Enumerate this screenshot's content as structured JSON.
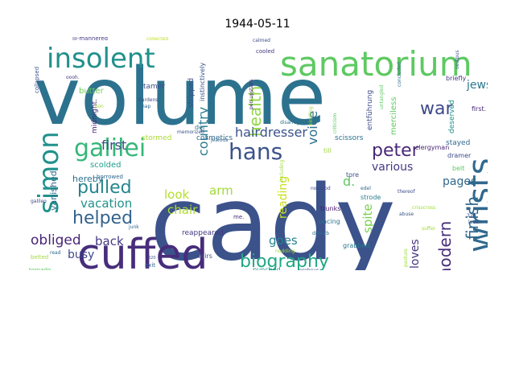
{
  "title": "1944-05-11",
  "words": [
    {
      "text": "volume",
      "color": "#2c728e"
    },
    {
      "text": "cady",
      "color": "#3b528b"
    },
    {
      "text": "cuffed",
      "color": "#472d7b"
    },
    {
      "text": "sanatorium",
      "color": "#5ec962"
    },
    {
      "text": "wrists",
      "color": "#31688e"
    },
    {
      "text": "insolent",
      "color": "#21918c"
    },
    {
      "text": "galilei",
      "color": "#35b779"
    },
    {
      "text": "simon",
      "color": "#21918c"
    },
    {
      "text": "hans",
      "color": "#3b528b"
    },
    {
      "text": "biography",
      "color": "#22a884"
    },
    {
      "text": "helped",
      "color": "#33638d"
    },
    {
      "text": "pulled",
      "color": "#25858e"
    },
    {
      "text": "health",
      "color": "#90d743"
    },
    {
      "text": "peter",
      "color": "#482878"
    },
    {
      "text": "war",
      "color": "#3e4a89"
    },
    {
      "text": "modern",
      "color": "#472d7b"
    },
    {
      "text": "finish",
      "color": "#31688e"
    },
    {
      "text": "obliged",
      "color": "#482475"
    },
    {
      "text": "country",
      "color": "#2a788e"
    },
    {
      "text": "voice",
      "color": "#2c728e"
    },
    {
      "text": "hairdresser",
      "color": "#3b528b"
    },
    {
      "text": "vacation",
      "color": "#21918c"
    },
    {
      "text": "look",
      "color": "#b5de2b"
    },
    {
      "text": "arm",
      "color": "#a0da39"
    },
    {
      "text": "chair",
      "color": "#addc30"
    },
    {
      "text": "first",
      "color": "#3e4a89"
    },
    {
      "text": "goes",
      "color": "#26828e"
    },
    {
      "text": "back",
      "color": "#443983"
    },
    {
      "text": "busy",
      "color": "#3e4989"
    },
    {
      "text": "pages",
      "color": "#31688e"
    },
    {
      "text": "various",
      "color": "#443983"
    },
    {
      "text": "d.",
      "color": "#5ec962"
    },
    {
      "text": "jews",
      "color": "#2a788e"
    },
    {
      "text": "reading",
      "color": "#c8e020"
    },
    {
      "text": "spite",
      "color": "#7ad151"
    },
    {
      "text": "loves",
      "color": "#46337e"
    },
    {
      "text": "vanished",
      "color": "#31688e"
    },
    {
      "text": "hereby",
      "color": "#2c728e"
    },
    {
      "text": "scolded",
      "color": "#1f9e89"
    },
    {
      "text": "midnight.",
      "color": "#482475"
    },
    {
      "text": "butter",
      "color": "#6ece58"
    },
    {
      "text": "tamer",
      "color": "#3b528b"
    },
    {
      "text": "stripped",
      "color": "#3e4a89"
    },
    {
      "text": "instinctively",
      "color": "#3b528b"
    },
    {
      "text": "merciless",
      "color": "#5ec962"
    },
    {
      "text": "deserved",
      "color": "#21918c"
    },
    {
      "text": "stayed",
      "color": "#31688e"
    },
    {
      "text": "dramer",
      "color": "#3e4a89"
    },
    {
      "text": "belt",
      "color": "#5ec962"
    },
    {
      "text": "scissors",
      "color": "#2c728e"
    },
    {
      "text": "entführung",
      "color": "#3e4a89"
    },
    {
      "text": "clergyman",
      "color": "#482878"
    },
    {
      "text": "briefly",
      "color": "#443983"
    },
    {
      "text": "first.",
      "color": "#482878"
    },
    {
      "text": "cosmetics",
      "color": "#31688e"
    },
    {
      "text": "stormed",
      "color": "#aadc32"
    },
    {
      "text": "trunks",
      "color": "#481a6c"
    },
    {
      "text": "pacing",
      "color": "#2c728e"
    },
    {
      "text": "strode",
      "color": "#277f8e"
    },
    {
      "text": "tore",
      "color": "#3b528b"
    },
    {
      "text": "till",
      "color": "#9fda3a"
    },
    {
      "text": "grabbed",
      "color": "#2a788e"
    },
    {
      "text": "reappeared",
      "color": "#443983"
    },
    {
      "text": "stairs",
      "color": "#3b528b"
    },
    {
      "text": "punched",
      "color": "#21918c"
    },
    {
      "text": "exit",
      "color": "#31688e"
    },
    {
      "text": "die",
      "color": "#26828e"
    },
    {
      "text": "crossroads",
      "color": "#2a788e"
    },
    {
      "text": "borrowed",
      "color": "#31688e"
    },
    {
      "text": "tornado",
      "color": "#5ec962"
    },
    {
      "text": "belted",
      "color": "#9fda3a"
    },
    {
      "text": "galileo",
      "color": "#3e4a89"
    },
    {
      "text": "lion",
      "color": "#9fda3a"
    },
    {
      "text": "der",
      "color": "#2c728e"
    },
    {
      "text": "collapsed",
      "color": "#3b528b"
    },
    {
      "text": "ill-mannered",
      "color": "#443983"
    },
    {
      "text": "collected",
      "color": "#bddf26"
    },
    {
      "text": "calmed",
      "color": "#3e4a89"
    },
    {
      "text": "cooled",
      "color": "#443983"
    },
    {
      "text": "pen-upstairs",
      "color": "#482878"
    },
    {
      "text": "disarray",
      "color": "#2c728e"
    },
    {
      "text": "untangled",
      "color": "#5ec962"
    },
    {
      "text": "concluded",
      "color": "#31688e"
    },
    {
      "text": "oedipus",
      "color": "#3b528b"
    },
    {
      "text": "nap",
      "color": "#31688e"
    },
    {
      "text": "burdens.",
      "color": "#3e4a89"
    },
    {
      "text": "oooh.",
      "color": "#443983"
    },
    {
      "text": "junk",
      "color": "#31688e"
    },
    {
      "text": "220",
      "color": "#3b528b"
    },
    {
      "text": "me.",
      "color": "#482878"
    },
    {
      "text": "no-good",
      "color": "#3e4a89"
    },
    {
      "text": "edel",
      "color": "#31688e"
    },
    {
      "text": "disturb",
      "color": "#2c728e"
    },
    {
      "text": "abuse",
      "color": "#3b528b"
    },
    {
      "text": "thereof",
      "color": "#3e4a89"
    },
    {
      "text": "320",
      "color": "#3b528b"
    },
    {
      "text": "orpheus",
      "color": "#3e4a89"
    },
    {
      "text": "memorized",
      "color": "#3b528b"
    },
    {
      "text": "jealous",
      "color": "#31688e"
    },
    {
      "text": "criticism",
      "color": "#5ec962"
    },
    {
      "text": "kindling",
      "color": "#9fda3a"
    },
    {
      "text": "crisscross",
      "color": "#9fda3a"
    },
    {
      "text": "suffer",
      "color": "#9fda3a"
    },
    {
      "text": "pasture",
      "color": "#9fda3a"
    },
    {
      "text": "read",
      "color": "#31688e"
    },
    {
      "text": "nodding",
      "color": "#9fda3a"
    },
    {
      "text": "laden",
      "color": "#3b528b"
    },
    {
      "text": "including",
      "color": "#9fda3a"
    }
  ]
}
